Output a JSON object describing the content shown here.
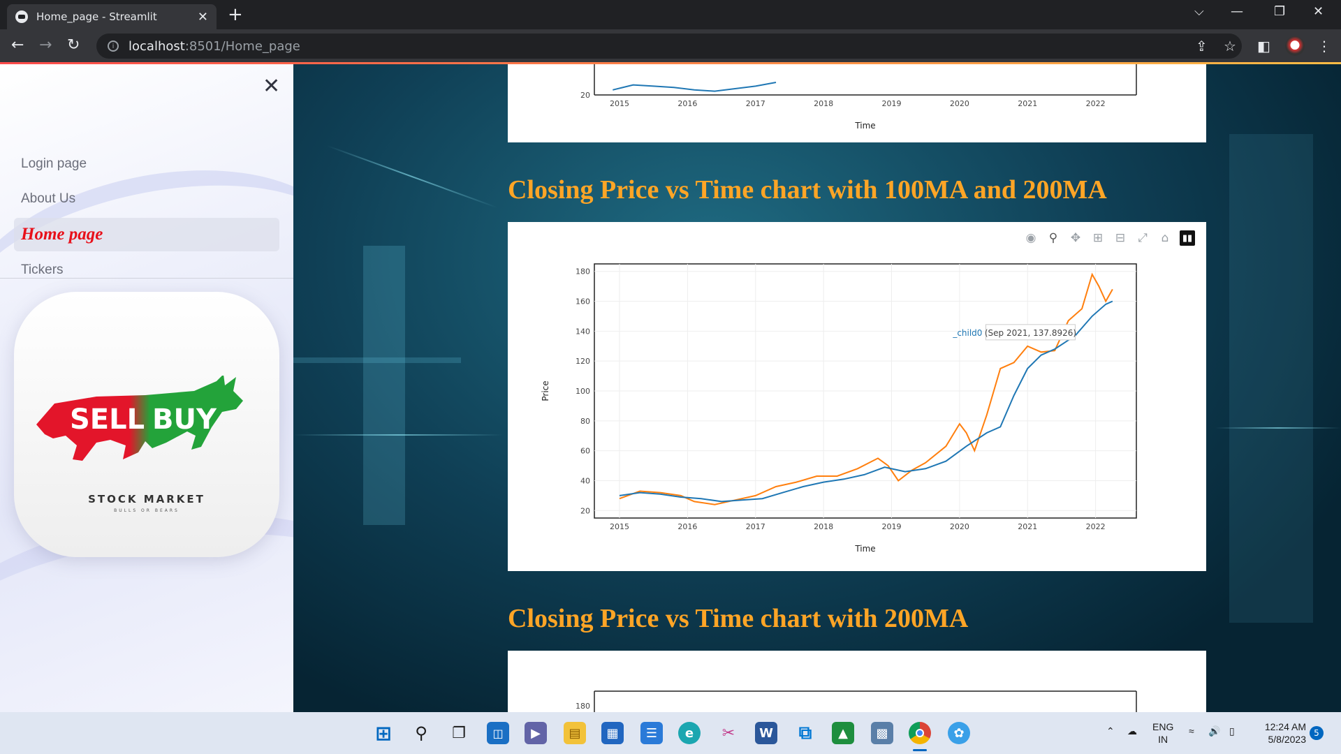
{
  "browser": {
    "tab_title": "Home_page - Streamlit",
    "url_host": "localhost",
    "url_path": ":8501/Home_page",
    "controls": {
      "new_tab": "+",
      "tab_close": "✕",
      "minimize": "—",
      "restore": "❐",
      "close": "✕",
      "dropdown": "⌵"
    }
  },
  "sidebar": {
    "close_label": "✕",
    "items": [
      {
        "label": "Login page",
        "active": false
      },
      {
        "label": "About Us",
        "active": false
      },
      {
        "label": "Home page",
        "active": true
      },
      {
        "label": "Tickers",
        "active": false
      }
    ],
    "logo": {
      "sell": "SELL",
      "buy": "BUY",
      "caption": "STOCK MARKET",
      "sub": "BULLS OR BEARS"
    }
  },
  "main": {
    "sections": [
      {
        "title": "Closing Price vs Time chart with 100MA and 200MA"
      },
      {
        "title": "Closing Price vs Time chart with 200MA"
      }
    ],
    "modebar_icons": [
      "camera-icon",
      "zoom-icon",
      "pan-icon",
      "zoom-in-icon",
      "zoom-out-icon",
      "autoscale-icon",
      "reset-axes-icon",
      "plotly-logo-icon"
    ]
  },
  "chart_data": [
    {
      "type": "line",
      "title": "",
      "xlabel": "Time",
      "ylabel": "",
      "x_ticks": [
        "2015",
        "2016",
        "2017",
        "2018",
        "2019",
        "2020",
        "2021",
        "2022"
      ],
      "y_ticks": [
        20
      ],
      "note": "partially visible (scrolled) chart above the first section title",
      "series": [
        {
          "color": "#1f77b4",
          "x": [
            2014.9,
            2015.2,
            2015.5,
            2015.8,
            2016.1,
            2016.4,
            2016.7,
            2017.0,
            2017.3
          ],
          "y": [
            24,
            28,
            27,
            26,
            24,
            23,
            25,
            27,
            30
          ]
        }
      ]
    },
    {
      "type": "line",
      "title": "",
      "xlabel": "Time",
      "ylabel": "Price",
      "x_ticks": [
        "2015",
        "2016",
        "2017",
        "2018",
        "2019",
        "2020",
        "2021",
        "2022"
      ],
      "y_ticks": [
        20,
        40,
        60,
        80,
        100,
        120,
        140,
        160,
        180
      ],
      "xlim": [
        2014.63,
        2022.6
      ],
      "ylim": [
        15,
        185
      ],
      "hover_label": {
        "name": "_child0",
        "text": "(Sep 2021, 137.8926)"
      },
      "series": [
        {
          "color": "#ff7f0e",
          "x": [
            2015.0,
            2015.3,
            2015.6,
            2015.9,
            2016.1,
            2016.4,
            2016.7,
            2017.0,
            2017.3,
            2017.6,
            2017.9,
            2018.2,
            2018.5,
            2018.8,
            2018.95,
            2019.1,
            2019.3,
            2019.5,
            2019.8,
            2020.0,
            2020.1,
            2020.22,
            2020.4,
            2020.6,
            2020.8,
            2021.0,
            2021.2,
            2021.4,
            2021.6,
            2021.8,
            2021.95,
            2022.05,
            2022.15,
            2022.25
          ],
          "y": [
            28,
            33,
            32,
            30,
            26,
            24,
            27,
            30,
            36,
            39,
            43,
            43,
            48,
            55,
            50,
            40,
            47,
            52,
            63,
            78,
            72,
            60,
            84,
            115,
            119,
            130,
            126,
            127,
            147,
            155,
            178,
            170,
            160,
            168
          ]
        },
        {
          "color": "#1f77b4",
          "x": [
            2015.0,
            2015.3,
            2015.6,
            2015.9,
            2016.2,
            2016.5,
            2016.8,
            2017.1,
            2017.4,
            2017.7,
            2018.0,
            2018.3,
            2018.6,
            2018.9,
            2019.2,
            2019.5,
            2019.8,
            2020.1,
            2020.4,
            2020.6,
            2020.8,
            2021.0,
            2021.2,
            2021.4,
            2021.7,
            2021.95,
            2022.15,
            2022.25
          ],
          "y": [
            30,
            32,
            31,
            29,
            28,
            26,
            27,
            28,
            32,
            36,
            39,
            41,
            44,
            49,
            46,
            48,
            53,
            63,
            72,
            76,
            97,
            115,
            124,
            128,
            137,
            150,
            158,
            160
          ]
        }
      ]
    },
    {
      "type": "line",
      "title": "",
      "xlabel": "",
      "ylabel": "",
      "y_ticks": [
        180
      ],
      "note": "partially visible chart below the second section title",
      "series": []
    }
  ],
  "taskbar": {
    "apps": [
      "start",
      "search",
      "task-view",
      "widgets",
      "teams-chat",
      "file-explorer",
      "store",
      "notepad",
      "edge",
      "snipping-tool",
      "word",
      "vscode",
      "git-tool",
      "remote-desktop",
      "chrome",
      "paint"
    ],
    "lang_top": "ENG",
    "lang_bottom": "IN",
    "time": "12:24 AM",
    "date": "5/8/2023",
    "notif_count": "5"
  },
  "colors": {
    "title_orange": "#ffa526",
    "active_nav_red": "#e8101a",
    "series_orange": "#ff7f0e",
    "series_blue": "#1f77b4"
  }
}
